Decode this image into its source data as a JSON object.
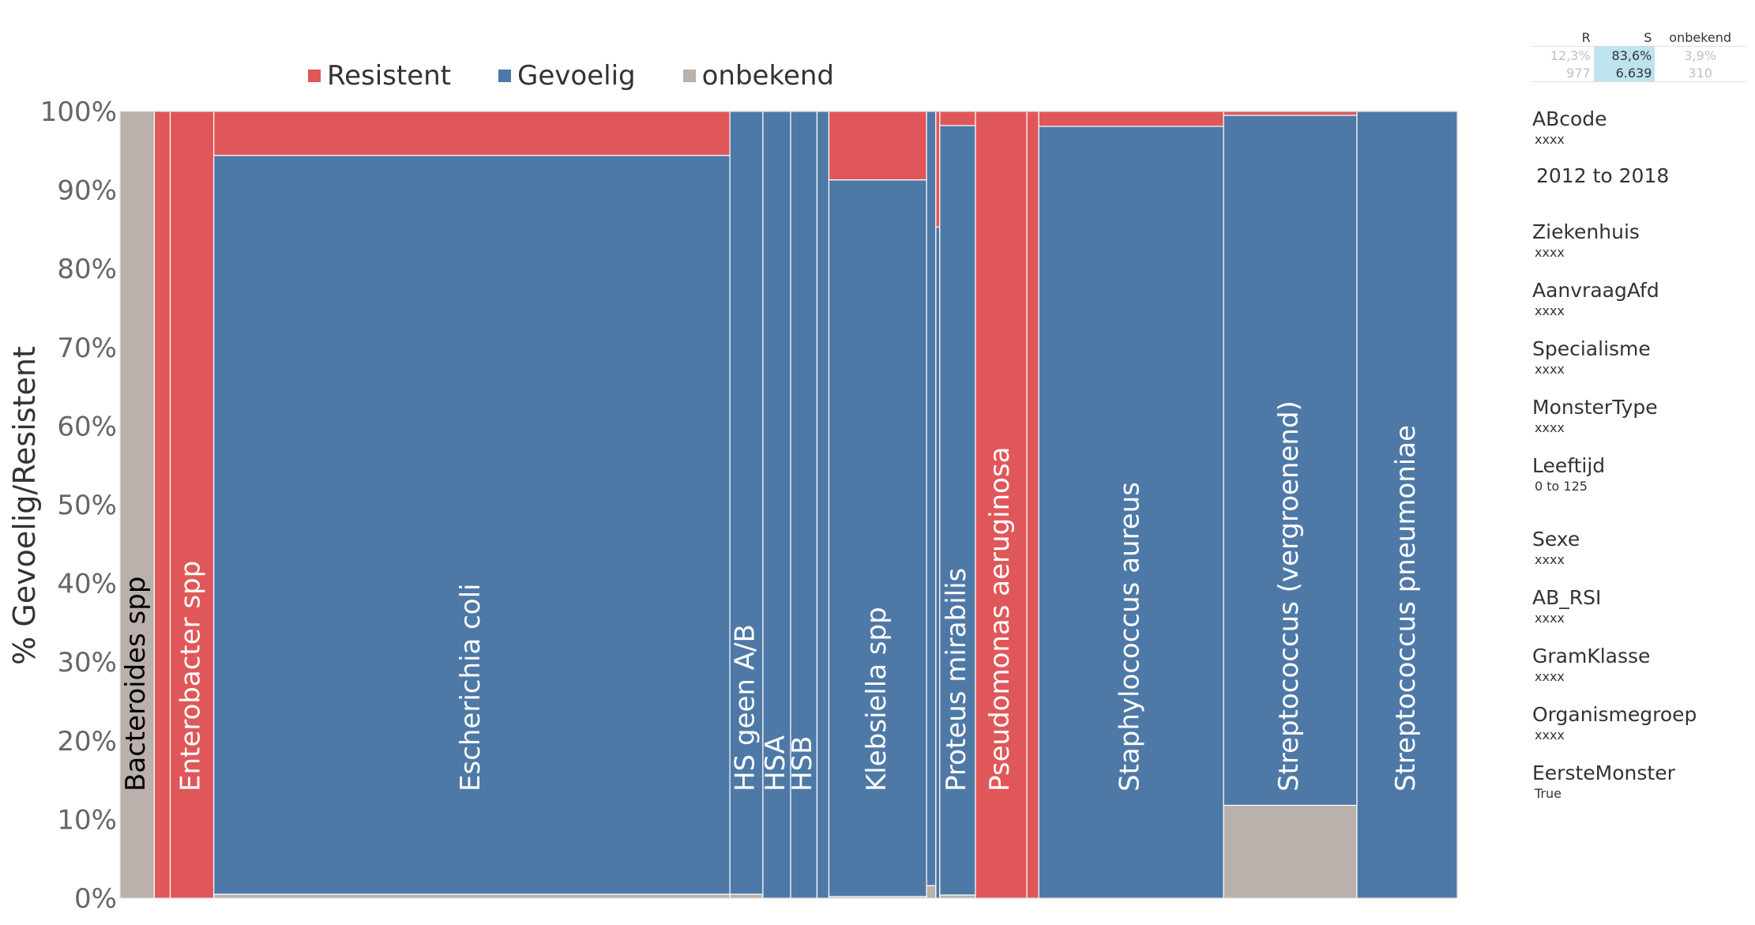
{
  "legend": [
    {
      "label": "Resistent",
      "color": "#e05759"
    },
    {
      "label": "Gevoelig",
      "color": "#4e79a7"
    },
    {
      "label": "onbekend",
      "color": "#bab0ac"
    }
  ],
  "summary": {
    "headers": [
      "R",
      "S",
      "onbekend"
    ],
    "percent_row": [
      "12,3%",
      "83,6%",
      "3,9%"
    ],
    "count_row": [
      "977",
      "6.639",
      "310"
    ]
  },
  "filters": [
    {
      "label": "ABcode",
      "value": "xxxx"
    },
    {
      "label": "Ziekenhuis",
      "value": "xxxx"
    },
    {
      "label": "AanvraagAfd",
      "value": "xxxx"
    },
    {
      "label": "Specialisme",
      "value": "xxxx"
    },
    {
      "label": "MonsterType",
      "value": "xxxx"
    },
    {
      "label": "Leeftijd",
      "value": "0 to 125"
    },
    {
      "label": "Sexe",
      "value": "xxxx"
    },
    {
      "label": "AB_RSI",
      "value": "xxxx"
    },
    {
      "label": "GramKlasse",
      "value": "xxxx"
    },
    {
      "label": "Organismegroep",
      "value": "xxxx"
    },
    {
      "label": "EersteMonster",
      "value": "True"
    }
  ],
  "period": "2012 to 2018",
  "chart_data": {
    "type": "bar",
    "variant": "stacked-100-variable-width",
    "ylabel": "% Gevoelig/Resistent",
    "ylim": [
      0,
      100
    ],
    "yticks": [
      "0%",
      "10%",
      "20%",
      "30%",
      "40%",
      "50%",
      "60%",
      "70%",
      "80%",
      "90%",
      "100%"
    ],
    "colors": {
      "onbekend": "#bab0ac",
      "Gevoelig": "#4e79a7",
      "Resistent": "#e05759"
    },
    "bars": [
      {
        "label": "Bacteroides spp",
        "width": 2.6,
        "onbekend": 100,
        "Gevoelig": 0,
        "Resistent": 0,
        "label_color": "#000000"
      },
      {
        "label": "",
        "width": 1.2,
        "onbekend": 0,
        "Gevoelig": 0,
        "Resistent": 100
      },
      {
        "label": "Enterobacter spp",
        "width": 3.3,
        "onbekend": 0,
        "Gevoelig": 0,
        "Resistent": 100
      },
      {
        "label": "Escherichia coli",
        "width": 39.1,
        "onbekend": 0.5,
        "Gevoelig": 93.9,
        "Resistent": 5.6
      },
      {
        "label": "HS geen A/B",
        "width": 2.5,
        "onbekend": 0.5,
        "Gevoelig": 99.5,
        "Resistent": 0
      },
      {
        "label": "HSA",
        "width": 2.1,
        "onbekend": 0,
        "Gevoelig": 100,
        "Resistent": 0
      },
      {
        "label": "HSB",
        "width": 2.0,
        "onbekend": 0,
        "Gevoelig": 100,
        "Resistent": 0
      },
      {
        "label": "",
        "width": 0.9,
        "onbekend": 0,
        "Gevoelig": 100,
        "Resistent": 0
      },
      {
        "label": "Klebsiella spp",
        "width": 7.4,
        "onbekend": 0.2,
        "Gevoelig": 91.1,
        "Resistent": 8.7
      },
      {
        "label": "",
        "width": 0.7,
        "onbekend": 1.6,
        "Gevoelig": 98.4,
        "Resistent": 0
      },
      {
        "label": "",
        "width": 0.3,
        "onbekend": 0,
        "Gevoelig": 85.3,
        "Resistent": 14.7
      },
      {
        "label": "Proteus mirabilis",
        "width": 2.7,
        "onbekend": 0.4,
        "Gevoelig": 97.8,
        "Resistent": 1.8
      },
      {
        "label": "Pseudomonas aeruginosa",
        "width": 3.9,
        "onbekend": 0,
        "Gevoelig": 0,
        "Resistent": 100
      },
      {
        "label": "",
        "width": 0.9,
        "onbekend": 0,
        "Gevoelig": 0,
        "Resistent": 100
      },
      {
        "label": "Staphylococcus aureus",
        "width": 14.0,
        "onbekend": 0,
        "Gevoelig": 98.1,
        "Resistent": 1.9
      },
      {
        "label": "Streptococcus (vergroenend)",
        "width": 10.1,
        "onbekend": 11.8,
        "Gevoelig": 87.7,
        "Resistent": 0.5
      },
      {
        "label": "Streptococcus pneumoniae",
        "width": 7.6,
        "onbekend": 0,
        "Gevoelig": 100,
        "Resistent": 0
      }
    ]
  }
}
